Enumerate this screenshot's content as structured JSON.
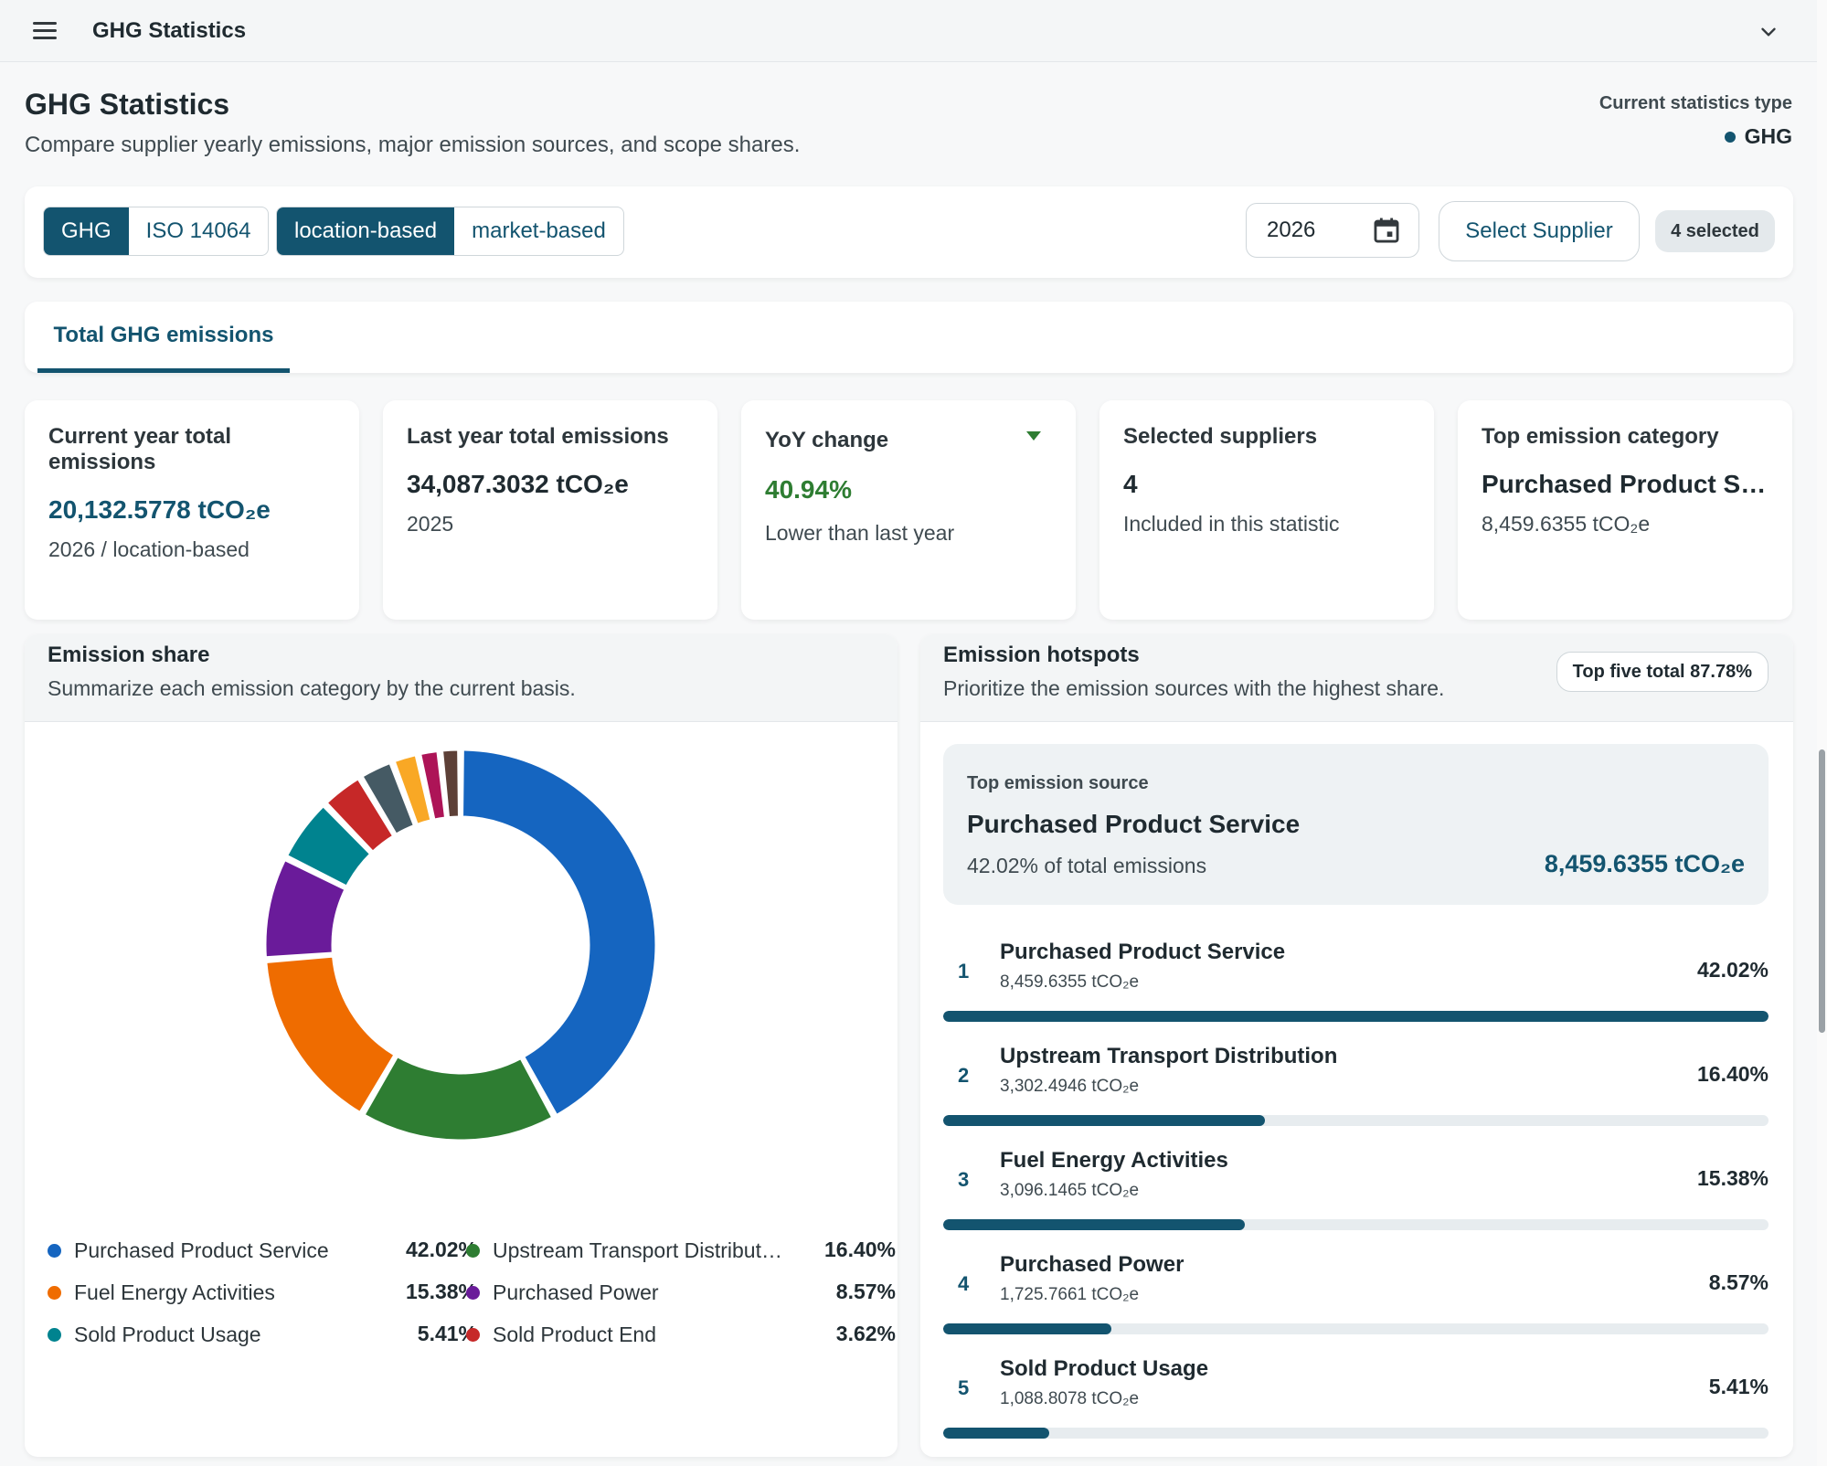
{
  "header": {
    "title": "GHG Statistics"
  },
  "page": {
    "title": "GHG Statistics",
    "subtitle": "Compare supplier yearly emissions, major emission sources, and scope shares.",
    "stat_type_label": "Current statistics type",
    "stat_type_value": "GHG"
  },
  "filters": {
    "standard": [
      "GHG",
      "ISO 14064"
    ],
    "standard_active": 0,
    "basis": [
      "location-based",
      "market-based"
    ],
    "basis_active": 0,
    "year": "2026",
    "select_supplier": "Select Supplier",
    "selected_badge": "4 selected"
  },
  "tabs": [
    {
      "label": "Total GHG emissions"
    }
  ],
  "kpis": [
    {
      "label": "Current year total emissions",
      "value": "20,132.5778 tCO₂e",
      "sub": "2026 / location-based"
    },
    {
      "label": "Last year total emissions",
      "value": "34,087.3032 tCO₂e",
      "sub": "2025"
    },
    {
      "label": "YoY change",
      "value": "40.94%",
      "sub": "Lower than last year"
    },
    {
      "label": "Selected suppliers",
      "value": "4",
      "sub": "Included in this statistic"
    },
    {
      "label": "Top emission category",
      "value": "Purchased Product Service",
      "sub": "8,459.6355 tCO₂e"
    }
  ],
  "share_panel": {
    "title": "Emission share",
    "subtitle": "Summarize each emission category by the current basis."
  },
  "chart_data": {
    "type": "pie",
    "style": "donut",
    "slices": [
      {
        "label": "Purchased Product Service",
        "value": 42.02,
        "pct": "42.02%",
        "color": "#1565c0"
      },
      {
        "label": "Upstream Transport Distribution",
        "value": 16.4,
        "pct": "16.40%",
        "color": "#2e7d32"
      },
      {
        "label": "Fuel Energy Activities",
        "value": 15.38,
        "pct": "15.38%",
        "color": "#ef6c00"
      },
      {
        "label": "Purchased Power",
        "value": 8.57,
        "pct": "8.57%",
        "color": "#6a1b9a"
      },
      {
        "label": "Sold Product Usage",
        "value": 5.41,
        "pct": "5.41%",
        "color": "#00838f"
      },
      {
        "label": "Sold Product End",
        "value": 3.62,
        "pct": "3.62%",
        "color": "#c62828"
      },
      {
        "value": 2.9,
        "color": "#455a64"
      },
      {
        "value": 2.2,
        "color": "#f9a825"
      },
      {
        "value": 1.8,
        "color": "#ad1457"
      },
      {
        "value": 1.7,
        "color": "#5d4037"
      }
    ]
  },
  "hotspots": {
    "title": "Emission hotspots",
    "subtitle": "Prioritize the emission sources with the highest share.",
    "badge": "Top five total 87.78%",
    "top": {
      "label": "Top emission source",
      "name": "Purchased Product Service",
      "pct": "42.02% of total emissions",
      "value": "8,459.6355 tCO₂e"
    },
    "items": [
      {
        "rank": "1",
        "name": "Purchased Product Service",
        "amount": "8,459.6355 tCO₂e",
        "pct": "42.02%",
        "share": 100
      },
      {
        "rank": "2",
        "name": "Upstream Transport Distribution",
        "amount": "3,302.4946 tCO₂e",
        "pct": "16.40%",
        "share": 39
      },
      {
        "rank": "3",
        "name": "Fuel Energy Activities",
        "amount": "3,096.1465 tCO₂e",
        "pct": "15.38%",
        "share": 36.6
      },
      {
        "rank": "4",
        "name": "Purchased Power",
        "amount": "1,725.7661 tCO₂e",
        "pct": "8.57%",
        "share": 20.4
      },
      {
        "rank": "5",
        "name": "Sold Product Usage",
        "amount": "1,088.8078 tCO₂e",
        "pct": "5.41%",
        "share": 12.9
      }
    ]
  }
}
